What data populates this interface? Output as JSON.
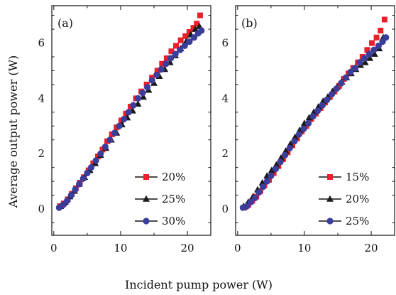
{
  "figure": {
    "xlabel": "Incident pump power (W)",
    "ylabel": "Average output power (W)"
  },
  "chart_data": [
    {
      "type": "scatter",
      "panel_label": "(a)",
      "xlim": [
        -0.3,
        23.5
      ],
      "ylim": [
        -0.95,
        7.35
      ],
      "xticks": [
        0,
        10,
        20
      ],
      "yticks": [
        0,
        2,
        4,
        6
      ],
      "grid": false,
      "legend_position": "bottom-right",
      "series": [
        {
          "name": "20%",
          "color": "#e8202a",
          "marker": "square",
          "x": [
            0.9,
            1.5,
            2.1,
            2.7,
            3.3,
            3.9,
            4.5,
            5.2,
            5.9,
            6.6,
            7.3,
            8.0,
            8.7,
            9.4,
            10.1,
            10.8,
            11.5,
            12.3,
            13.1,
            13.9,
            14.7,
            15.5,
            16.2,
            16.9,
            17.6,
            18.3,
            19.0,
            19.7,
            20.3,
            20.9,
            21.4,
            21.9
          ],
          "y": [
            0.1,
            0.2,
            0.35,
            0.55,
            0.75,
            0.95,
            1.15,
            1.4,
            1.65,
            1.9,
            2.15,
            2.45,
            2.7,
            2.95,
            3.2,
            3.45,
            3.7,
            4.0,
            4.25,
            4.5,
            4.75,
            5.0,
            5.25,
            5.45,
            5.7,
            5.9,
            6.1,
            6.25,
            6.4,
            6.55,
            6.7,
            7.0
          ]
        },
        {
          "name": "25%",
          "color": "#1a1a1a",
          "marker": "triangle",
          "x": [
            1.0,
            1.7,
            2.4,
            3.1,
            3.8,
            4.6,
            5.4,
            6.2,
            7.0,
            7.8,
            8.6,
            9.4,
            10.2,
            11.0,
            11.8,
            12.6,
            13.4,
            14.2,
            15.0,
            15.8,
            16.6,
            17.4,
            18.2,
            19.0,
            19.8,
            20.5,
            21.2,
            21.8
          ],
          "y": [
            0.1,
            0.25,
            0.45,
            0.65,
            0.9,
            1.15,
            1.4,
            1.65,
            1.95,
            2.2,
            2.5,
            2.75,
            3.05,
            3.3,
            3.55,
            3.8,
            4.05,
            4.3,
            4.55,
            4.8,
            5.05,
            5.3,
            5.55,
            5.8,
            6.05,
            6.3,
            6.5,
            6.6
          ]
        },
        {
          "name": "30%",
          "color": "#3a3d9a",
          "marker": "circle",
          "x": [
            0.8,
            1.4,
            2.0,
            2.6,
            3.2,
            3.8,
            4.4,
            5.0,
            5.6,
            6.3,
            7.0,
            7.7,
            8.4,
            9.1,
            9.8,
            10.5,
            11.2,
            11.9,
            12.6,
            13.3,
            14.0,
            14.7,
            15.4,
            16.1,
            16.8,
            17.5,
            18.2,
            18.9,
            19.6,
            20.3,
            21.0,
            21.6,
            22.1
          ],
          "y": [
            0.05,
            0.15,
            0.3,
            0.5,
            0.7,
            0.9,
            1.1,
            1.3,
            1.5,
            1.75,
            2.0,
            2.25,
            2.5,
            2.75,
            3.0,
            3.25,
            3.5,
            3.75,
            4.0,
            4.2,
            4.4,
            4.65,
            4.85,
            5.05,
            5.25,
            5.45,
            5.6,
            5.75,
            5.9,
            6.05,
            6.2,
            6.35,
            6.45
          ]
        }
      ]
    },
    {
      "type": "scatter",
      "panel_label": "(b)",
      "xlim": [
        -0.3,
        23.5
      ],
      "ylim": [
        -0.95,
        7.35
      ],
      "xticks": [
        0,
        10,
        20
      ],
      "yticks": [
        0,
        2,
        4,
        6
      ],
      "grid": false,
      "legend_position": "bottom-right",
      "series": [
        {
          "name": "15%",
          "color": "#e8202a",
          "marker": "square",
          "x": [
            1.0,
            1.6,
            2.2,
            2.8,
            3.4,
            4.0,
            4.7,
            5.4,
            6.1,
            6.8,
            7.5,
            8.2,
            8.9,
            9.6,
            10.3,
            11.0,
            11.7,
            12.4,
            13.1,
            13.8,
            14.5,
            15.2,
            15.9,
            16.6,
            17.3,
            18.0,
            18.7,
            19.4,
            20.1,
            20.8,
            21.4,
            22.0
          ],
          "y": [
            0.05,
            0.15,
            0.3,
            0.45,
            0.65,
            0.85,
            1.05,
            1.3,
            1.55,
            1.8,
            2.05,
            2.3,
            2.55,
            2.8,
            3.0,
            3.25,
            3.45,
            3.65,
            3.85,
            4.05,
            4.25,
            4.45,
            4.7,
            4.9,
            5.1,
            5.3,
            5.5,
            5.75,
            6.0,
            6.2,
            6.45,
            6.85
          ]
        },
        {
          "name": "20%",
          "color": "#1a1a1a",
          "marker": "triangle",
          "x": [
            0.9,
            1.6,
            2.3,
            3.0,
            3.7,
            4.4,
            5.1,
            5.8,
            6.5,
            7.2,
            7.9,
            8.6,
            9.3,
            10.0,
            10.7,
            11.4,
            12.1,
            12.8,
            13.5,
            14.2,
            14.9,
            15.6,
            16.3,
            17.0,
            17.7,
            18.4,
            19.1,
            19.8,
            20.5,
            21.2,
            21.8
          ],
          "y": [
            0.1,
            0.25,
            0.45,
            0.7,
            0.95,
            1.2,
            1.4,
            1.6,
            1.85,
            2.1,
            2.35,
            2.6,
            2.85,
            3.1,
            3.3,
            3.5,
            3.7,
            3.9,
            4.05,
            4.25,
            4.4,
            4.6,
            4.75,
            4.9,
            5.05,
            5.2,
            5.3,
            5.45,
            5.6,
            5.8,
            6.2
          ]
        },
        {
          "name": "25%",
          "color": "#3a3d9a",
          "marker": "circle",
          "x": [
            0.8,
            1.4,
            2.0,
            2.6,
            3.2,
            3.8,
            4.4,
            5.0,
            5.7,
            6.4,
            7.1,
            7.8,
            8.5,
            9.2,
            9.9,
            10.6,
            11.3,
            12.0,
            12.7,
            13.4,
            14.1,
            14.8,
            15.5,
            16.2,
            16.9,
            17.6,
            18.3,
            19.0,
            19.7,
            20.4,
            21.1,
            21.7,
            22.2
          ],
          "y": [
            0.05,
            0.1,
            0.25,
            0.4,
            0.6,
            0.8,
            1.0,
            1.2,
            1.45,
            1.7,
            1.95,
            2.2,
            2.45,
            2.7,
            2.9,
            3.1,
            3.35,
            3.55,
            3.75,
            3.95,
            4.15,
            4.35,
            4.55,
            4.75,
            4.95,
            5.1,
            5.3,
            5.45,
            5.6,
            5.75,
            5.9,
            6.05,
            6.2
          ]
        }
      ]
    }
  ]
}
